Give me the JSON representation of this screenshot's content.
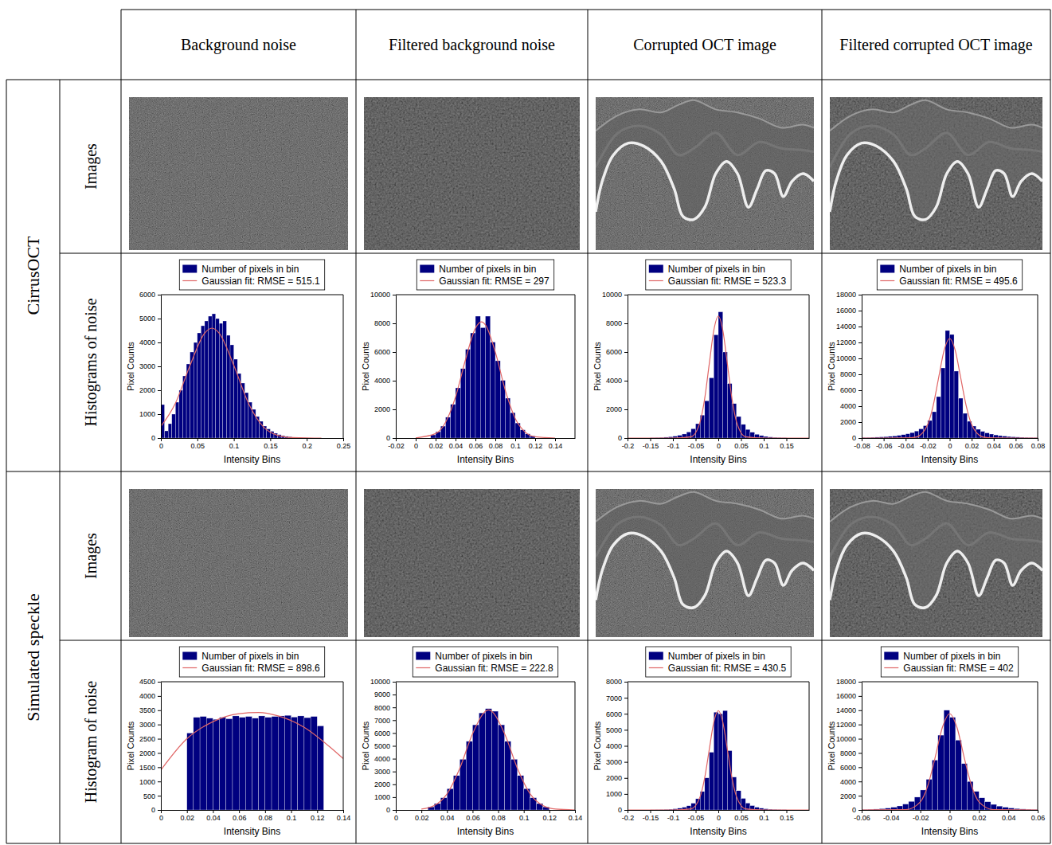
{
  "columns": [
    "Background noise",
    "Filtered background noise",
    "Corrupted OCT image",
    "Filtered corrupted OCT image"
  ],
  "groups": [
    {
      "label": "CirrusOCT",
      "rows": [
        "Images",
        "Histograms of noise"
      ]
    },
    {
      "label": "Simulated speckle",
      "rows": [
        "Images",
        "Histogram of noise"
      ]
    }
  ],
  "chart_data": [
    {
      "type": "histogram",
      "xlabel": "Intensity Bins",
      "ylabel": "Pixel Counts",
      "legend": "top",
      "bins": [
        0,
        0.005,
        0.01,
        0.015,
        0.02,
        0.025,
        0.03,
        0.035,
        0.04,
        0.045,
        0.05,
        0.055,
        0.06,
        0.065,
        0.07,
        0.075,
        0.08,
        0.085,
        0.09,
        0.095,
        0.1,
        0.105,
        0.11,
        0.115,
        0.12,
        0.125,
        0.13,
        0.135,
        0.14,
        0.145,
        0.15,
        0.155,
        0.16,
        0.165,
        0.17,
        0.175,
        0.18,
        0.185,
        0.19,
        0.195,
        0.2
      ],
      "series": [
        {
          "name": "Number of pixels in bin",
          "type": "bar",
          "color": "#000080",
          "values": [
            1400,
            300,
            600,
            1000,
            1500,
            2000,
            2600,
            3100,
            3600,
            4000,
            4400,
            4700,
            4900,
            5100,
            5200,
            5000,
            4800,
            4900,
            4300,
            3900,
            3300,
            2700,
            2300,
            1900,
            1500,
            1200,
            900,
            700,
            500,
            380,
            280,
            200,
            140,
            100,
            70,
            50,
            30,
            20,
            10,
            5
          ]
        },
        {
          "name": "Gaussian fit: RMSE = 515.1",
          "type": "line",
          "color": "#e06666",
          "x": [
            0,
            0.02,
            0.04,
            0.06,
            0.07,
            0.08,
            0.1,
            0.12,
            0.14,
            0.16,
            0.18,
            0.2,
            0.22
          ],
          "values": [
            485,
            1460,
            3040,
            4390,
            4600,
            4390,
            3040,
            1460,
            485,
            112,
            18,
            2,
            0
          ]
        }
      ],
      "xlim": [
        0,
        0.25
      ],
      "xticks": [
        0,
        0.05,
        0.1,
        0.15,
        0.2,
        0.25
      ],
      "ylim": [
        0,
        6000
      ],
      "yticks": [
        0,
        1000,
        2000,
        3000,
        4000,
        5000,
        6000
      ]
    },
    {
      "type": "histogram",
      "xlabel": "Intensity Bins",
      "ylabel": "Pixel Counts",
      "legend": "top",
      "bins": [
        0.015,
        0.02,
        0.025,
        0.03,
        0.035,
        0.04,
        0.045,
        0.05,
        0.055,
        0.06,
        0.065,
        0.07,
        0.075,
        0.08,
        0.085,
        0.09,
        0.095,
        0.1,
        0.105,
        0.11,
        0.115,
        0.12
      ],
      "series": [
        {
          "name": "Number of pixels in bin",
          "type": "bar",
          "color": "#000080",
          "values": [
            220,
            440,
            830,
            1450,
            2350,
            3500,
            4840,
            6190,
            7330,
            8500,
            7700,
            8500,
            6690,
            5390,
            4020,
            2780,
            1770,
            1050,
            570,
            290,
            140
          ]
        },
        {
          "name": "Gaussian fit: RMSE = 297",
          "type": "line",
          "color": "#e06666",
          "x": [
            0,
            0.02,
            0.03,
            0.04,
            0.05,
            0.06,
            0.066,
            0.07,
            0.08,
            0.09,
            0.1,
            0.11,
            0.12,
            0.14
          ],
          "values": [
            10,
            310,
            1100,
            2860,
            5460,
            7660,
            8100,
            7900,
            5990,
            3330,
            1360,
            410,
            90,
            0
          ]
        }
      ],
      "xlim": [
        -0.02,
        0.16
      ],
      "xticks": [
        -0.02,
        0,
        0.02,
        0.04,
        0.06,
        0.08,
        0.1,
        0.12,
        0.14
      ],
      "ylim": [
        0,
        10000
      ],
      "yticks": [
        0,
        2000,
        4000,
        6000,
        8000,
        10000
      ]
    },
    {
      "type": "histogram",
      "xlabel": "Intensity Bins",
      "ylabel": "Pixel Counts",
      "legend": "top",
      "bins": [
        -0.15,
        -0.14,
        -0.13,
        -0.12,
        -0.11,
        -0.1,
        -0.09,
        -0.08,
        -0.07,
        -0.06,
        -0.05,
        -0.04,
        -0.03,
        -0.02,
        -0.01,
        0,
        0.01,
        0.02,
        0.03,
        0.04,
        0.05,
        0.06,
        0.07,
        0.08,
        0.09,
        0.1,
        0.11,
        0.12,
        0.13,
        0.14,
        0.15
      ],
      "series": [
        {
          "name": "Number of pixels in bin",
          "type": "bar",
          "color": "#000080",
          "values": [
            20,
            30,
            40,
            60,
            90,
            130,
            190,
            280,
            420,
            650,
            1000,
            1600,
            2600,
            4200,
            7200,
            8800,
            6000,
            3800,
            2400,
            1500,
            950,
            600,
            400,
            260,
            170,
            110,
            70,
            45,
            30,
            20
          ]
        },
        {
          "name": "Gaussian fit: RMSE = 523.3",
          "type": "line",
          "color": "#e06666",
          "x": [
            -0.2,
            -0.1,
            -0.06,
            -0.04,
            -0.03,
            -0.02,
            -0.01,
            0,
            0.01,
            0.02,
            0.03,
            0.04,
            0.06,
            0.1,
            0.2
          ],
          "values": [
            0,
            0,
            95,
            1150,
            2760,
            5160,
            7500,
            8500,
            7500,
            5160,
            2760,
            1150,
            95,
            0,
            0
          ]
        }
      ],
      "xlim": [
        -0.2,
        0.2
      ],
      "xticks": [
        -0.2,
        -0.15,
        -0.1,
        -0.05,
        0,
        0.05,
        0.1,
        0.15
      ],
      "ylim": [
        0,
        10000
      ],
      "yticks": [
        0,
        2000,
        4000,
        6000,
        8000,
        10000
      ]
    },
    {
      "type": "histogram",
      "xlabel": "Intensity Bins",
      "ylabel": "Pixel Counts",
      "legend": "top",
      "bins": [
        -0.08,
        -0.076,
        -0.072,
        -0.068,
        -0.064,
        -0.06,
        -0.056,
        -0.052,
        -0.048,
        -0.044,
        -0.04,
        -0.036,
        -0.032,
        -0.028,
        -0.024,
        -0.02,
        -0.016,
        -0.012,
        -0.008,
        -0.004,
        0,
        0.004,
        0.008,
        0.012,
        0.016,
        0.02,
        0.024,
        0.028,
        0.032,
        0.036,
        0.04,
        0.044,
        0.048,
        0.052,
        0.056,
        0.06,
        0.064,
        0.068,
        0.072,
        0.076,
        0.08
      ],
      "series": [
        {
          "name": "Number of pixels in bin",
          "type": "bar",
          "color": "#000080",
          "values": [
            60,
            70,
            90,
            110,
            140,
            170,
            210,
            260,
            330,
            420,
            530,
            680,
            880,
            1150,
            1550,
            2200,
            3300,
            5200,
            8800,
            13500,
            13000,
            8400,
            5000,
            3100,
            2100,
            1500,
            1100,
            830,
            640,
            500,
            390,
            300,
            240,
            190,
            150,
            120,
            95,
            75,
            60,
            50
          ]
        },
        {
          "name": "Gaussian fit: RMSE = 495.6",
          "type": "line",
          "color": "#e06666",
          "x": [
            -0.08,
            -0.04,
            -0.03,
            -0.02,
            -0.015,
            -0.01,
            -0.005,
            0,
            0.005,
            0.01,
            0.015,
            0.02,
            0.03,
            0.04,
            0.08
          ],
          "values": [
            0,
            4,
            140,
            1690,
            4060,
            7590,
            11030,
            12500,
            11030,
            7590,
            4060,
            1690,
            140,
            4,
            0
          ]
        }
      ],
      "xlim": [
        -0.08,
        0.08
      ],
      "xticks": [
        -0.08,
        -0.06,
        -0.04,
        -0.02,
        0,
        0.02,
        0.04,
        0.06,
        0.08
      ],
      "ylim": [
        0,
        18000
      ],
      "yticks": [
        0,
        2000,
        4000,
        6000,
        8000,
        10000,
        12000,
        14000,
        16000,
        18000
      ]
    },
    {
      "type": "histogram",
      "xlabel": "Intensity Bins",
      "ylabel": "Pixel Counts",
      "legend": "top",
      "bins": [
        0.02,
        0.025,
        0.03,
        0.035,
        0.04,
        0.045,
        0.05,
        0.055,
        0.06,
        0.065,
        0.07,
        0.075,
        0.08,
        0.085,
        0.09,
        0.095,
        0.1,
        0.105,
        0.11,
        0.115,
        0.12,
        0.125
      ],
      "series": [
        {
          "name": "Number of pixels in bin",
          "type": "bar",
          "color": "#000080",
          "values": [
            2700,
            3250,
            3280,
            3220,
            3180,
            3250,
            3200,
            3300,
            3250,
            3280,
            3220,
            3300,
            3250,
            3280,
            3300,
            3320,
            3260,
            3300,
            3240,
            3280,
            2950
          ]
        },
        {
          "name": "Gaussian fit: RMSE = 898.6",
          "type": "line",
          "color": "#e06666",
          "x": [
            0,
            0.02,
            0.04,
            0.06,
            0.075,
            0.09,
            0.11,
            0.13,
            0.14
          ],
          "values": [
            1400,
            2500,
            3100,
            3380,
            3420,
            3300,
            2900,
            2200,
            1800
          ]
        }
      ],
      "xlim": [
        0,
        0.14
      ],
      "xticks": [
        0,
        0.02,
        0.04,
        0.06,
        0.08,
        0.1,
        0.12,
        0.14
      ],
      "ylim": [
        0,
        4500
      ],
      "yticks": [
        0,
        500,
        1000,
        1500,
        2000,
        2500,
        3000,
        3500,
        4000,
        4500
      ]
    },
    {
      "type": "histogram",
      "xlabel": "Intensity Bins",
      "ylabel": "Pixel Counts",
      "legend": "top",
      "bins": [
        0.025,
        0.03,
        0.035,
        0.04,
        0.045,
        0.05,
        0.055,
        0.06,
        0.065,
        0.07,
        0.075,
        0.08,
        0.085,
        0.09,
        0.095,
        0.1,
        0.105,
        0.11,
        0.115,
        0.12
      ],
      "series": [
        {
          "name": "Number of pixels in bin",
          "type": "bar",
          "color": "#000080",
          "values": [
            240,
            500,
            950,
            1660,
            2680,
            3950,
            5350,
            6640,
            7570,
            7900,
            7700,
            6640,
            5350,
            3950,
            2680,
            1660,
            950,
            500,
            240
          ]
        },
        {
          "name": "Gaussian fit: RMSE = 222.8",
          "type": "line",
          "color": "#e06666",
          "x": [
            0.02,
            0.03,
            0.04,
            0.05,
            0.06,
            0.0725,
            0.085,
            0.095,
            0.105,
            0.115,
            0.125,
            0.14
          ],
          "values": [
            66,
            340,
            1250,
            3250,
            5950,
            7800,
            5950,
            3250,
            1250,
            340,
            66,
            0
          ]
        }
      ],
      "xlim": [
        0,
        0.14
      ],
      "xticks": [
        0,
        0.02,
        0.04,
        0.06,
        0.08,
        0.1,
        0.12,
        0.14
      ],
      "ylim": [
        0,
        10000
      ],
      "yticks": [
        0,
        1000,
        2000,
        3000,
        4000,
        5000,
        6000,
        7000,
        8000,
        9000,
        10000
      ]
    },
    {
      "type": "histogram",
      "xlabel": "Intensity Bins",
      "ylabel": "Pixel Counts",
      "legend": "top",
      "bins": [
        -0.15,
        -0.14,
        -0.13,
        -0.12,
        -0.11,
        -0.1,
        -0.09,
        -0.08,
        -0.07,
        -0.06,
        -0.05,
        -0.04,
        -0.03,
        -0.02,
        -0.01,
        0,
        0.01,
        0.02,
        0.03,
        0.04,
        0.05,
        0.06,
        0.07,
        0.08,
        0.09,
        0.1,
        0.11,
        0.12,
        0.13,
        0.14,
        0.15
      ],
      "series": [
        {
          "name": "Number of pixels in bin",
          "type": "bar",
          "color": "#000080",
          "values": [
            10,
            15,
            20,
            30,
            45,
            70,
            110,
            170,
            260,
            420,
            700,
            1150,
            2000,
            3600,
            6100,
            6000,
            6200,
            3700,
            2050,
            1200,
            720,
            430,
            270,
            170,
            110,
            70,
            45,
            30,
            20,
            15
          ]
        },
        {
          "name": "Gaussian fit: RMSE = 430.5",
          "type": "line",
          "color": "#e06666",
          "x": [
            -0.2,
            -0.1,
            -0.06,
            -0.04,
            -0.03,
            -0.02,
            -0.01,
            0,
            0.01,
            0.02,
            0.03,
            0.04,
            0.06,
            0.1,
            0.2
          ],
          "values": [
            0,
            0,
            70,
            840,
            2010,
            3760,
            5470,
            6200,
            5470,
            3760,
            2010,
            840,
            70,
            0,
            0
          ]
        }
      ],
      "xlim": [
        -0.2,
        0.2
      ],
      "xticks": [
        -0.2,
        -0.15,
        -0.1,
        -0.05,
        0,
        0.05,
        0.1,
        0.15
      ],
      "ylim": [
        0,
        8000
      ],
      "yticks": [
        0,
        1000,
        2000,
        3000,
        4000,
        5000,
        6000,
        7000,
        8000
      ]
    },
    {
      "type": "histogram",
      "xlabel": "Intensity Bins",
      "ylabel": "Pixel Counts",
      "legend": "top",
      "bins": [
        -0.06,
        -0.056,
        -0.052,
        -0.048,
        -0.044,
        -0.04,
        -0.036,
        -0.032,
        -0.028,
        -0.024,
        -0.02,
        -0.016,
        -0.012,
        -0.008,
        -0.004,
        0,
        0.004,
        0.008,
        0.012,
        0.016,
        0.02,
        0.024,
        0.028,
        0.032,
        0.036,
        0.04,
        0.044,
        0.048,
        0.052,
        0.056,
        0.06
      ],
      "series": [
        {
          "name": "Number of pixels in bin",
          "type": "bar",
          "color": "#000080",
          "values": [
            50,
            80,
            120,
            180,
            260,
            380,
            560,
            820,
            1200,
            1800,
            2800,
            4300,
            7000,
            10500,
            14000,
            13000,
            9800,
            6500,
            4000,
            2600,
            1700,
            1150,
            780,
            540,
            380,
            270,
            190,
            130,
            90,
            60
          ]
        },
        {
          "name": "Gaussian fit: RMSE = 402",
          "type": "line",
          "color": "#e06666",
          "x": [
            -0.06,
            -0.03,
            -0.02,
            -0.015,
            -0.01,
            -0.005,
            0,
            0.005,
            0.01,
            0.015,
            0.02,
            0.03,
            0.06
          ],
          "values": [
            0,
            52,
            1140,
            3360,
            7290,
            11570,
            13500,
            11570,
            7290,
            3360,
            1140,
            52,
            0
          ]
        }
      ],
      "xlim": [
        -0.06,
        0.06
      ],
      "xticks": [
        -0.06,
        -0.04,
        -0.02,
        0,
        0.02,
        0.04,
        0.06
      ],
      "ylim": [
        0,
        18000
      ],
      "yticks": [
        0,
        2000,
        4000,
        6000,
        8000,
        10000,
        12000,
        14000,
        16000,
        18000
      ]
    }
  ]
}
